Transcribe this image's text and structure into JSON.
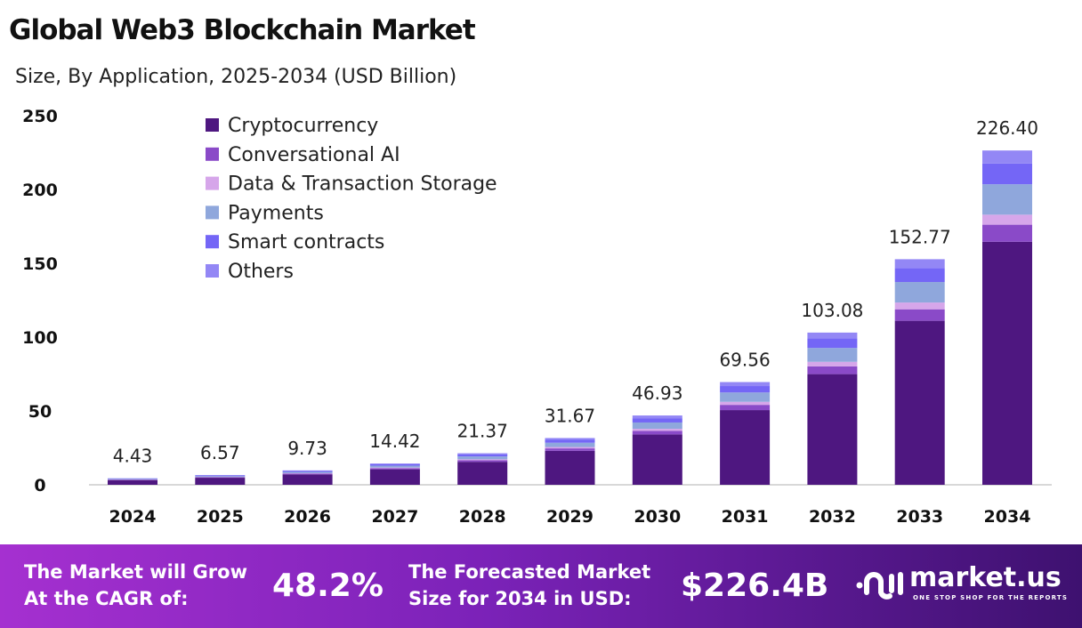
{
  "chart_data": {
    "type": "bar",
    "stacked": true,
    "title": "Global Web3 Blockchain Market",
    "subtitle": "Size, By Application, 2025-2034 (USD Billion)",
    "categories": [
      "2024",
      "2025",
      "2026",
      "2027",
      "2028",
      "2029",
      "2030",
      "2031",
      "2032",
      "2033",
      "2034"
    ],
    "totals": [
      "4.43",
      "6.57",
      "9.73",
      "14.42",
      "21.37",
      "31.67",
      "46.93",
      "69.56",
      "103.08",
      "152.77",
      "226.40"
    ],
    "ylim": [
      0,
      250
    ],
    "yticks": [
      "0",
      "50",
      "100",
      "150",
      "200",
      "250"
    ],
    "grid": false,
    "legend_position": "top-left",
    "series": [
      {
        "name": "Cryptocurrency",
        "color": "#4e1780",
        "values": [
          3.22,
          4.78,
          7.07,
          10.48,
          15.54,
          23.02,
          34.12,
          50.57,
          74.94,
          111.06,
          164.59
        ]
      },
      {
        "name": "Conversational AI",
        "color": "#8a4ac8",
        "values": [
          0.23,
          0.34,
          0.5,
          0.74,
          1.09,
          1.62,
          2.39,
          3.55,
          5.26,
          7.79,
          11.55
        ]
      },
      {
        "name": "Data & Transaction Storage",
        "color": "#d6a6ea",
        "values": [
          0.13,
          0.2,
          0.29,
          0.43,
          0.64,
          0.95,
          1.41,
          2.09,
          3.09,
          4.58,
          6.79
        ]
      },
      {
        "name": "Payments",
        "color": "#8fa7dc",
        "values": [
          0.4,
          0.6,
          0.89,
          1.31,
          1.94,
          2.88,
          4.27,
          6.33,
          9.38,
          13.9,
          20.6
        ]
      },
      {
        "name": "Smart contracts",
        "color": "#7466f6",
        "values": [
          0.27,
          0.41,
          0.6,
          0.89,
          1.32,
          1.96,
          2.91,
          4.31,
          6.39,
          9.47,
          14.04
        ]
      },
      {
        "name": "Others",
        "color": "#9387f5",
        "values": [
          0.18,
          0.24,
          0.38,
          0.57,
          0.84,
          1.24,
          1.83,
          2.71,
          4.02,
          5.97,
          8.83
        ]
      }
    ]
  },
  "footer": {
    "cagr_label_1": "The Market will Grow",
    "cagr_label_2": "At the CAGR of:",
    "cagr_value": "48.2%",
    "forecast_label_1": "The Forecasted Market",
    "forecast_label_2": "Size for 2034 in USD:",
    "forecast_value": "$226.4B",
    "brand": "market.us",
    "tagline": "ONE STOP SHOP FOR THE REPORTS"
  }
}
